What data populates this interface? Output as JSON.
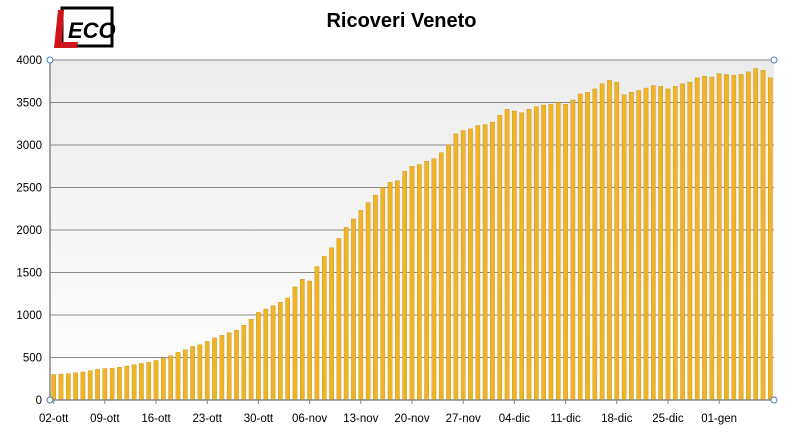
{
  "logo": {
    "text_l": "L'",
    "text_eco": "ECO"
  },
  "chart_data": {
    "type": "bar",
    "title": "Ricoveri Veneto",
    "xlabel": "",
    "ylabel": "",
    "ylim": [
      0,
      4000
    ],
    "yticks": [
      0,
      500,
      1000,
      1500,
      2000,
      2500,
      3000,
      3500,
      4000
    ],
    "grid": true,
    "start_date": "2020-10-02",
    "xtick_labels": [
      "02-ott",
      "09-ott",
      "16-ott",
      "23-ott",
      "30-ott",
      "06-nov",
      "13-nov",
      "20-nov",
      "27-nov",
      "04-dic",
      "11-dic",
      "18-dic",
      "25-dic",
      "01-gen"
    ],
    "bar_color": "#F0B429",
    "values": [
      300,
      305,
      310,
      320,
      330,
      345,
      360,
      370,
      375,
      385,
      400,
      415,
      430,
      445,
      465,
      490,
      520,
      560,
      590,
      630,
      650,
      690,
      730,
      760,
      790,
      820,
      880,
      950,
      1030,
      1070,
      1110,
      1150,
      1200,
      1330,
      1420,
      1400,
      1570,
      1690,
      1790,
      1900,
      2030,
      2130,
      2230,
      2320,
      2410,
      2500,
      2560,
      2580,
      2690,
      2750,
      2770,
      2810,
      2840,
      2910,
      3000,
      3130,
      3170,
      3190,
      3230,
      3240,
      3270,
      3350,
      3420,
      3400,
      3380,
      3420,
      3450,
      3470,
      3480,
      3500,
      3480,
      3530,
      3600,
      3620,
      3660,
      3720,
      3760,
      3740,
      3590,
      3620,
      3640,
      3670,
      3700,
      3690,
      3660,
      3690,
      3720,
      3740,
      3790,
      3810,
      3800,
      3840,
      3830,
      3820,
      3830,
      3860,
      3900,
      3880,
      3790
    ]
  }
}
